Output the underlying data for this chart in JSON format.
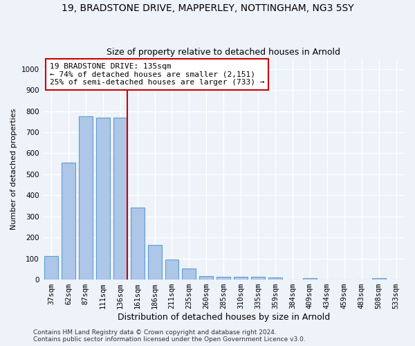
{
  "title1": "19, BRADSTONE DRIVE, MAPPERLEY, NOTTINGHAM, NG3 5SY",
  "title2": "Size of property relative to detached houses in Arnold",
  "xlabel": "Distribution of detached houses by size in Arnold",
  "ylabel": "Number of detached properties",
  "categories": [
    "37sqm",
    "62sqm",
    "87sqm",
    "111sqm",
    "136sqm",
    "161sqm",
    "186sqm",
    "211sqm",
    "235sqm",
    "260sqm",
    "285sqm",
    "310sqm",
    "335sqm",
    "359sqm",
    "384sqm",
    "409sqm",
    "434sqm",
    "459sqm",
    "483sqm",
    "508sqm",
    "533sqm"
  ],
  "values": [
    112,
    557,
    775,
    770,
    770,
    343,
    163,
    97,
    52,
    18,
    15,
    12,
    12,
    10,
    0,
    8,
    0,
    0,
    0,
    8,
    0
  ],
  "bar_color": "#aec6e8",
  "bar_edge_color": "#5a9fd4",
  "vline_x_index": 4,
  "vline_color": "#cc0000",
  "annotation_line1": "19 BRADSTONE DRIVE: 135sqm",
  "annotation_line2": "← 74% of detached houses are smaller (2,151)",
  "annotation_line3": "25% of semi-detached houses are larger (733) →",
  "annotation_box_color": "#ffffff",
  "annotation_box_edge_color": "#cc0000",
  "ylim": [
    0,
    1050
  ],
  "yticks": [
    0,
    100,
    200,
    300,
    400,
    500,
    600,
    700,
    800,
    900,
    1000
  ],
  "footer1": "Contains HM Land Registry data © Crown copyright and database right 2024.",
  "footer2": "Contains public sector information licensed under the Open Government Licence v3.0.",
  "bg_color": "#eef2f9",
  "grid_color": "#ffffff",
  "title1_fontsize": 10,
  "title2_fontsize": 9,
  "ylabel_fontsize": 8,
  "xlabel_fontsize": 9,
  "tick_fontsize": 7.5,
  "ann_fontsize": 8,
  "footer_fontsize": 6.5
}
